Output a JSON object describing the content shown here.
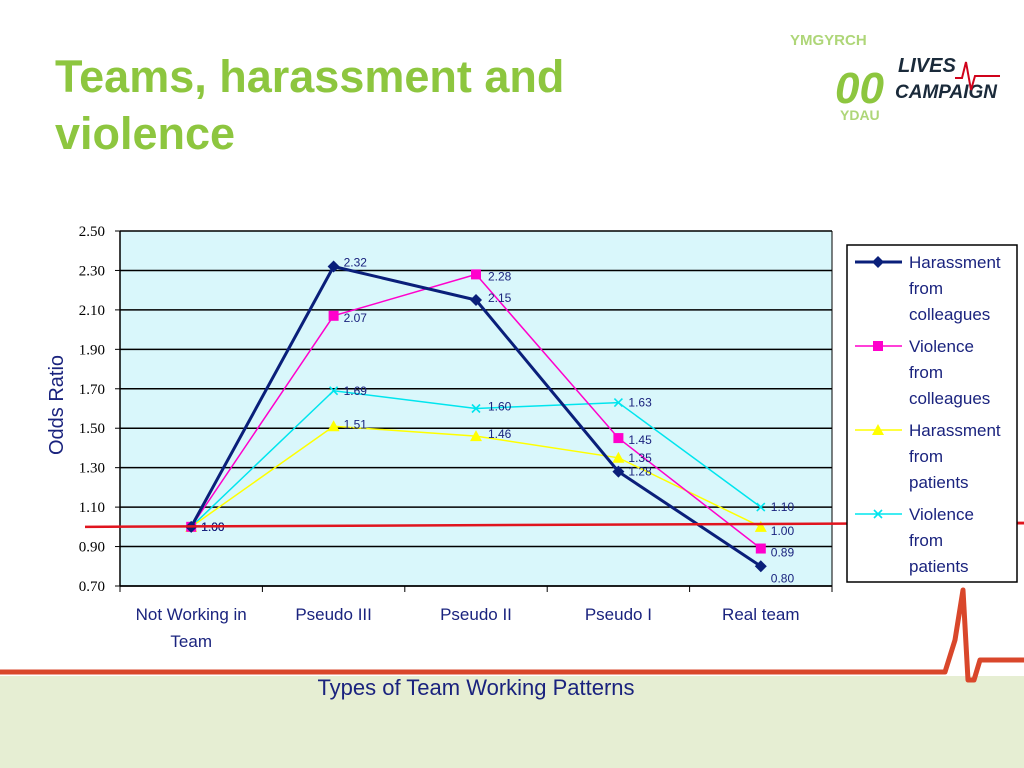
{
  "slide": {
    "title": "Teams, harassment and violence",
    "logo": {
      "lines": [
        "LIVES",
        "CAMPAIGN"
      ],
      "colors": {
        "green": "#8dc63f",
        "red": "#d0021b"
      }
    },
    "theme": {
      "accent": "#8dc63f",
      "baseline_red": "#e0141e",
      "bg_band": "#e6eed3"
    }
  },
  "chart_data": {
    "type": "line",
    "title": "",
    "xlabel": "Types of Team Working Patterns",
    "ylabel": "Odds Ratio",
    "ylim": [
      0.7,
      2.5
    ],
    "yticks": [
      "0.70",
      "0.90",
      "1.10",
      "1.30",
      "1.50",
      "1.70",
      "1.90",
      "2.10",
      "2.30",
      "2.50"
    ],
    "categories": [
      [
        "Not Working in",
        "Team"
      ],
      [
        "Pseudo III"
      ],
      [
        "Pseudo II"
      ],
      [
        "Pseudo I"
      ],
      [
        "Real team"
      ]
    ],
    "grid": true,
    "legend_placement": "right",
    "plot_bg": "#d9f7fb",
    "reference_line": 1.0,
    "series": [
      {
        "name": [
          "Harassment",
          "from",
          "colleagues"
        ],
        "color": "#0a1f7a",
        "marker": "diamond",
        "values": [
          1.0,
          2.32,
          2.15,
          1.28,
          0.8
        ],
        "labels": [
          "1.00",
          "2.32",
          "2.15",
          "1.28",
          "0.80"
        ]
      },
      {
        "name": [
          "Violence",
          "from",
          "colleagues"
        ],
        "color": "#ff00cc",
        "marker": "square",
        "values": [
          1.0,
          2.07,
          2.28,
          1.45,
          0.89
        ],
        "labels": [
          "1.00",
          "2.07",
          "2.28",
          "1.45",
          "0.89"
        ]
      },
      {
        "name": [
          "Harassment",
          "from",
          "patients"
        ],
        "color": "#ffff00",
        "marker": "triangle",
        "values": [
          1.0,
          1.51,
          1.46,
          1.35,
          1.0
        ],
        "labels": [
          "1.00",
          "1.51",
          "1.46",
          "1.35",
          "1.00"
        ]
      },
      {
        "name": [
          "Violence",
          "from",
          "patients"
        ],
        "color": "#00e5ee",
        "marker": "x",
        "values": [
          1.0,
          1.69,
          1.6,
          1.63,
          1.1
        ],
        "labels": [
          "1.00",
          "1.69",
          "1.60",
          "1.63",
          "1.10"
        ]
      }
    ]
  }
}
